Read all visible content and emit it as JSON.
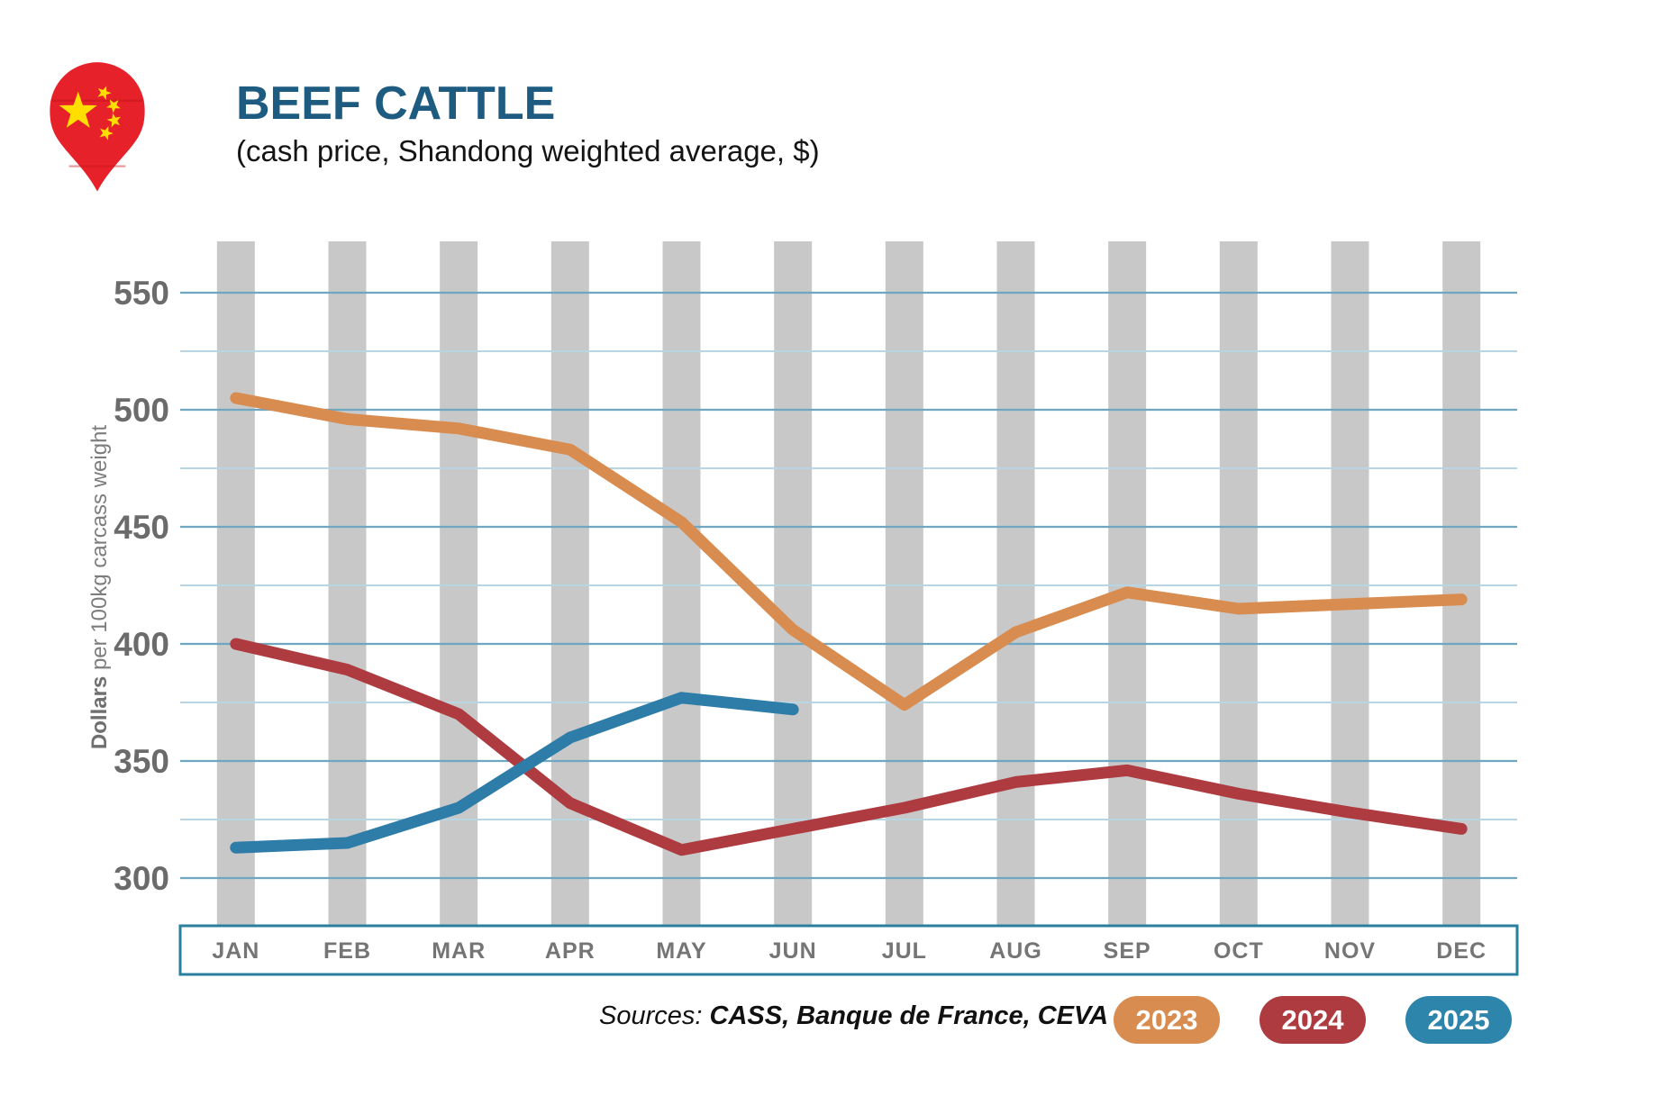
{
  "header": {
    "title": "BEEF CATTLE",
    "subtitle": "(cash price, Shandong weighted average, $)"
  },
  "y_axis_title": {
    "bold_part": "Dollars",
    "rest_part": " per 100kg carcass weight"
  },
  "sources": {
    "label": "Sources: ",
    "value": "CASS, Banque de France, CEVA"
  },
  "legend": [
    {
      "label": "2023",
      "color": "#D98C4F"
    },
    {
      "label": "2024",
      "color": "#AE3B40"
    },
    {
      "label": "2025",
      "color": "#2E85AB"
    }
  ],
  "colors": {
    "title": "#1D5B80",
    "background_bar": "#C8C8C8",
    "grid_major": "#6FA6C1",
    "grid_minor": "#B7D6E3",
    "axis_box_border": "#2A7F9E",
    "y_tick_label": "#6B6B6B",
    "month_label": "#757575"
  },
  "chart_data": {
    "type": "line",
    "title": "BEEF CATTLE (cash price, Shandong weighted average, $)",
    "ylabel": "Dollars per 100kg carcass weight",
    "xlabel": "",
    "ylim": [
      300,
      550
    ],
    "yticks_major": [
      550,
      500,
      450,
      400,
      350,
      300
    ],
    "yticks_minor": [
      525,
      475,
      425,
      375,
      325
    ],
    "grid": true,
    "background_month_bars": true,
    "legend_position": "bottom-right",
    "categories": [
      "JAN",
      "FEB",
      "MAR",
      "APR",
      "MAY",
      "JUN",
      "JUL",
      "AUG",
      "SEP",
      "OCT",
      "NOV",
      "DEC"
    ],
    "series": [
      {
        "name": "2023",
        "color": "#D98C4F",
        "values": [
          505,
          496,
          492,
          483,
          452,
          406,
          374,
          405,
          422,
          415,
          417,
          419
        ]
      },
      {
        "name": "2024",
        "color": "#AE3B40",
        "values": [
          400,
          389,
          370,
          332,
          312,
          321,
          330,
          341,
          346,
          336,
          328,
          321
        ]
      },
      {
        "name": "2025",
        "color": "#2E7CA8",
        "values": [
          313,
          315,
          330,
          360,
          377,
          372
        ]
      }
    ]
  }
}
